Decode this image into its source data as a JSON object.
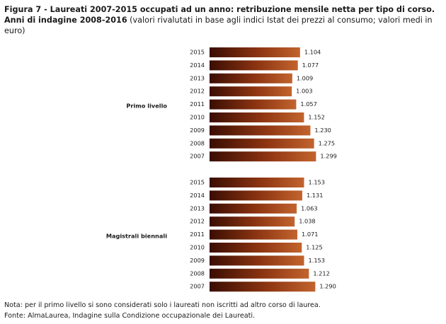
{
  "figure": {
    "prefix": "Figura 7 - ",
    "title_bold": "Laureati 2007-2015 occupati ad un anno: retribuzione mensile netta per tipo di corso. Anni di indagine 2008-2016",
    "title_rest": " (valori rivalutati in base agli indici Istat dei prezzi al consumo; valori medi in euro)"
  },
  "notes": {
    "nota": "Nota: per il primo livello si sono considerati solo i laureati non iscritti ad altro corso di laurea.",
    "fonte": "Fonte: AlmaLaurea, Indagine sulla Condizione occupazionale dei Laureati."
  },
  "colors": {
    "bar_dark": "#3a0d02",
    "bar_mid": "#8e3512",
    "bar_light": "#c2642e"
  },
  "chart_data": {
    "type": "bar",
    "orientation": "horizontal",
    "value_format": "dot-thousands, 3 decimals",
    "groups": [
      {
        "name": "Primo livello",
        "categories": [
          "2015",
          "2014",
          "2013",
          "2012",
          "2011",
          "2010",
          "2009",
          "2008",
          "2007"
        ],
        "values": [
          1.104,
          1.077,
          1.009,
          1.003,
          1.057,
          1.152,
          1.23,
          1.275,
          1.299
        ],
        "labels": [
          "1.104",
          "1.077",
          "1.009",
          "1.003",
          "1.057",
          "1.152",
          "1.230",
          "1.275",
          "1.299"
        ]
      },
      {
        "name": "Magistrali biennali",
        "categories": [
          "2015",
          "2014",
          "2013",
          "2012",
          "2011",
          "2010",
          "2009",
          "2008",
          "2007"
        ],
        "values": [
          1.153,
          1.131,
          1.063,
          1.038,
          1.071,
          1.125,
          1.153,
          1.212,
          1.29
        ],
        "labels": [
          "1.153",
          "1.131",
          "1.063",
          "1.038",
          "1.071",
          "1.125",
          "1.153",
          "1.212",
          "1.290"
        ]
      }
    ]
  }
}
